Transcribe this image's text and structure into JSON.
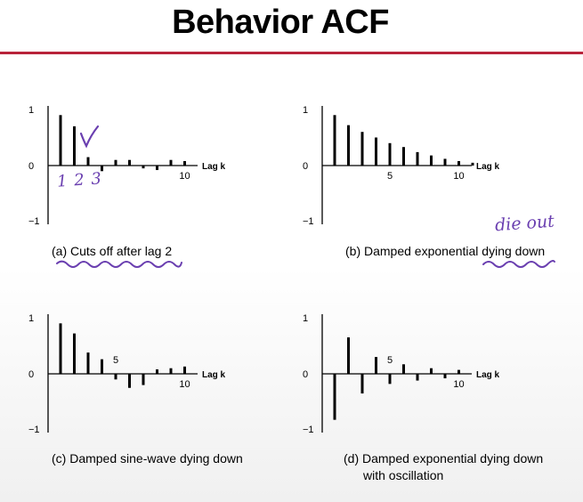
{
  "title": "Behavior ACF",
  "colors": {
    "rule": "#b8233a",
    "ink": "#6a3fb0",
    "bars": "#000000"
  },
  "annotations": {
    "panel_a_lag_digits": "1 2 3",
    "panel_a_checkmark": "check-mark-icon",
    "panel_b_note": "die out"
  },
  "chart_data": [
    {
      "type": "bar",
      "id": "a",
      "title": "(a) Cuts off after lag 2",
      "xlabel": "Lag k",
      "ylabel": "",
      "x": [
        1,
        2,
        3,
        4,
        5,
        6,
        7,
        8,
        9,
        10,
        11
      ],
      "values": [
        0.9,
        0.7,
        0.15,
        -0.1,
        0.1,
        0.1,
        -0.05,
        -0.08,
        0.1,
        0.08,
        0.0
      ],
      "ylim": [
        -1,
        1
      ],
      "y_ticks": [
        "1",
        "0",
        "−1"
      ],
      "x_tick_labels": [
        {
          "x": 10,
          "label": "10"
        }
      ]
    },
    {
      "type": "bar",
      "id": "b",
      "title": "(b) Damped exponential dying down",
      "xlabel": "Lag k",
      "ylabel": "",
      "x": [
        1,
        2,
        3,
        4,
        5,
        6,
        7,
        8,
        9,
        10,
        11
      ],
      "values": [
        0.9,
        0.72,
        0.6,
        0.5,
        0.4,
        0.33,
        0.24,
        0.18,
        0.12,
        0.08,
        0.05
      ],
      "ylim": [
        -1,
        1
      ],
      "y_ticks": [
        "1",
        "0",
        "−1"
      ],
      "x_tick_labels": [
        {
          "x": 5,
          "label": "5"
        },
        {
          "x": 10,
          "label": "10"
        }
      ]
    },
    {
      "type": "bar",
      "id": "c",
      "title": "(c) Damped sine-wave dying down",
      "xlabel": "Lag k",
      "ylabel": "",
      "x": [
        1,
        2,
        3,
        4,
        5,
        6,
        7,
        8,
        9,
        10,
        11
      ],
      "values": [
        0.9,
        0.72,
        0.38,
        0.26,
        -0.1,
        -0.25,
        -0.2,
        0.08,
        0.1,
        0.13,
        0.0
      ],
      "ylim": [
        -1,
        1
      ],
      "y_ticks": [
        "1",
        "0",
        "−1"
      ],
      "x_tick_labels": [
        {
          "x": 5,
          "label": "5",
          "above": true
        },
        {
          "x": 10,
          "label": "10"
        }
      ]
    },
    {
      "type": "bar",
      "id": "d",
      "title": "(d) Damped exponential dying down",
      "title_line2": "with oscillation",
      "xlabel": "Lag k",
      "ylabel": "",
      "x": [
        1,
        2,
        3,
        4,
        5,
        6,
        7,
        8,
        9,
        10,
        11
      ],
      "values": [
        -0.82,
        0.65,
        -0.35,
        0.3,
        -0.18,
        0.17,
        -0.12,
        0.1,
        -0.08,
        0.07,
        0.0
      ],
      "ylim": [
        -1,
        1
      ],
      "y_ticks": [
        "1",
        "0",
        "−1"
      ],
      "x_tick_labels": [
        {
          "x": 5,
          "label": "5",
          "above": true
        },
        {
          "x": 10,
          "label": "10"
        }
      ]
    }
  ]
}
